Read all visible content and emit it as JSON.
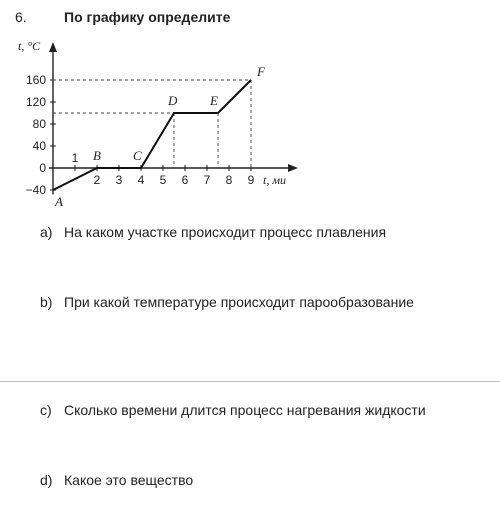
{
  "task": {
    "number": "6.",
    "title": "По графику определите"
  },
  "chart_data": {
    "type": "line",
    "xlabel": "t, ми",
    "ylabel": "t, °C",
    "x_ticks": [
      "1",
      "2",
      "3",
      "4",
      "5",
      "6",
      "7",
      "8",
      "9"
    ],
    "y_ticks": [
      "160",
      "120",
      "80",
      "40",
      "0",
      "−40"
    ],
    "xlim": [
      0,
      10
    ],
    "ylim": [
      -40,
      180
    ],
    "series": [
      {
        "x": [
          0,
          2,
          4,
          5.5,
          7.5,
          9
        ],
        "y": [
          -40,
          0,
          0,
          100,
          100,
          160
        ]
      }
    ],
    "points": [
      {
        "label": "A",
        "x": 0,
        "y": -40
      },
      {
        "label": "B",
        "x": 2,
        "y": 0
      },
      {
        "label": "C",
        "x": 4,
        "y": 0
      },
      {
        "label": "D",
        "x": 5.5,
        "y": 100
      },
      {
        "label": "E",
        "x": 7.5,
        "y": 100
      },
      {
        "label": "F",
        "x": 9,
        "y": 160
      }
    ]
  },
  "questions": [
    {
      "label": "a)",
      "text": "На каком участке происходит процесс плавления"
    },
    {
      "label": "b)",
      "text": "При какой температуре происходит парообразование"
    },
    {
      "label": "c)",
      "text": "Сколько времени длится процесс нагревания жидкости"
    },
    {
      "label": "d)",
      "text": "Какое это вещество"
    }
  ]
}
